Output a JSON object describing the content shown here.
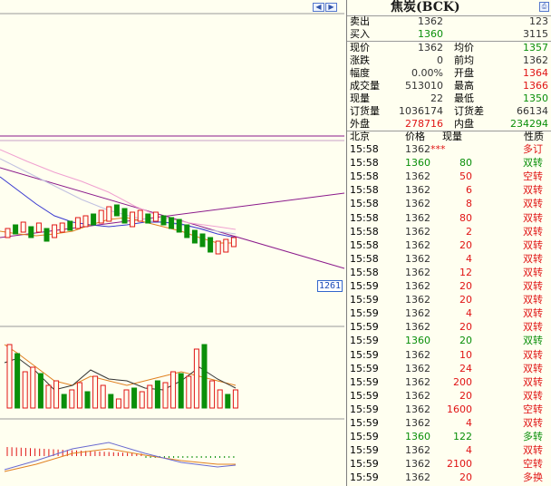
{
  "chart": {
    "price_marker": "1261",
    "scroll_left_icon": "scroll-left-icon",
    "scroll_right_icon": "scroll-right-icon"
  },
  "quote": {
    "title": "焦炭(BCK)",
    "print_icon": "print-icon",
    "ask": {
      "label": "卖出",
      "price": "1362",
      "volume": "123"
    },
    "bid": {
      "label": "买入",
      "price": "1360",
      "volume": "3115"
    },
    "stats": [
      {
        "l1": "现价",
        "v1": "1362",
        "c1": "black",
        "l2": "均价",
        "v2": "1357",
        "c2": "green"
      },
      {
        "l1": "涨跌",
        "v1": "0",
        "c1": "black",
        "l2": "前均",
        "v2": "1362",
        "c2": "black"
      },
      {
        "l1": "幅度",
        "v1": "0.00%",
        "c1": "black",
        "l2": "开盘",
        "v2": "1364",
        "c2": "red"
      },
      {
        "l1": "成交量",
        "v1": "513010",
        "c1": "black",
        "l2": "最高",
        "v2": "1366",
        "c2": "red"
      },
      {
        "l1": "现量",
        "v1": "22",
        "c1": "black",
        "l2": "最低",
        "v2": "1350",
        "c2": "green"
      },
      {
        "l1": "订货量",
        "v1": "1036174",
        "c1": "black",
        "l2": "订货差",
        "v2": "66134",
        "c2": "black"
      },
      {
        "l1": "外盘",
        "v1": "278716",
        "c1": "red",
        "l2": "内盘",
        "v2": "234294",
        "c2": "green"
      }
    ],
    "trade_header": {
      "time": "北京",
      "price": "价格",
      "volume": "现量",
      "nature": "性质"
    },
    "trades": [
      {
        "time": "15:58",
        "price": "1362",
        "pc": "black",
        "volume": "***",
        "vc": "red",
        "nature": "多订",
        "nc": "red"
      },
      {
        "time": "15:58",
        "price": "1360",
        "pc": "green",
        "volume": "80",
        "vc": "green",
        "nature": "双转",
        "nc": "green"
      },
      {
        "time": "15:58",
        "price": "1362",
        "pc": "black",
        "volume": "50",
        "vc": "red",
        "nature": "空转",
        "nc": "red"
      },
      {
        "time": "15:58",
        "price": "1362",
        "pc": "black",
        "volume": "6",
        "vc": "red",
        "nature": "双转",
        "nc": "red"
      },
      {
        "time": "15:58",
        "price": "1362",
        "pc": "black",
        "volume": "8",
        "vc": "red",
        "nature": "双转",
        "nc": "red"
      },
      {
        "time": "15:58",
        "price": "1362",
        "pc": "black",
        "volume": "80",
        "vc": "red",
        "nature": "双转",
        "nc": "red"
      },
      {
        "time": "15:58",
        "price": "1362",
        "pc": "black",
        "volume": "2",
        "vc": "red",
        "nature": "双转",
        "nc": "red"
      },
      {
        "time": "15:58",
        "price": "1362",
        "pc": "black",
        "volume": "20",
        "vc": "red",
        "nature": "双转",
        "nc": "red"
      },
      {
        "time": "15:58",
        "price": "1362",
        "pc": "black",
        "volume": "4",
        "vc": "red",
        "nature": "双转",
        "nc": "red"
      },
      {
        "time": "15:58",
        "price": "1362",
        "pc": "black",
        "volume": "12",
        "vc": "red",
        "nature": "双转",
        "nc": "red"
      },
      {
        "time": "15:59",
        "price": "1362",
        "pc": "black",
        "volume": "20",
        "vc": "red",
        "nature": "双转",
        "nc": "red"
      },
      {
        "time": "15:59",
        "price": "1362",
        "pc": "black",
        "volume": "20",
        "vc": "red",
        "nature": "双转",
        "nc": "red"
      },
      {
        "time": "15:59",
        "price": "1362",
        "pc": "black",
        "volume": "4",
        "vc": "red",
        "nature": "双转",
        "nc": "red"
      },
      {
        "time": "15:59",
        "price": "1362",
        "pc": "black",
        "volume": "20",
        "vc": "red",
        "nature": "双转",
        "nc": "red"
      },
      {
        "time": "15:59",
        "price": "1360",
        "pc": "green",
        "volume": "20",
        "vc": "green",
        "nature": "双转",
        "nc": "green"
      },
      {
        "time": "15:59",
        "price": "1362",
        "pc": "black",
        "volume": "10",
        "vc": "red",
        "nature": "双转",
        "nc": "red"
      },
      {
        "time": "15:59",
        "price": "1362",
        "pc": "black",
        "volume": "24",
        "vc": "red",
        "nature": "双转",
        "nc": "red"
      },
      {
        "time": "15:59",
        "price": "1362",
        "pc": "black",
        "volume": "200",
        "vc": "red",
        "nature": "双转",
        "nc": "red"
      },
      {
        "time": "15:59",
        "price": "1362",
        "pc": "black",
        "volume": "20",
        "vc": "red",
        "nature": "双转",
        "nc": "red"
      },
      {
        "time": "15:59",
        "price": "1362",
        "pc": "black",
        "volume": "1600",
        "vc": "red",
        "nature": "空转",
        "nc": "red"
      },
      {
        "time": "15:59",
        "price": "1362",
        "pc": "black",
        "volume": "4",
        "vc": "red",
        "nature": "双转",
        "nc": "red"
      },
      {
        "time": "15:59",
        "price": "1360",
        "pc": "green",
        "volume": "122",
        "vc": "green",
        "nature": "多转",
        "nc": "green"
      },
      {
        "time": "15:59",
        "price": "1362",
        "pc": "black",
        "volume": "4",
        "vc": "red",
        "nature": "双转",
        "nc": "red"
      },
      {
        "time": "15:59",
        "price": "1362",
        "pc": "black",
        "volume": "2100",
        "vc": "red",
        "nature": "空转",
        "nc": "red"
      },
      {
        "time": "15:59",
        "price": "1362",
        "pc": "black",
        "volume": "20",
        "vc": "red",
        "nature": "多换",
        "nc": "red"
      }
    ]
  },
  "colors": {
    "up": "#e01414",
    "down": "#0a8f0a",
    "accent": "#1a49b8",
    "bg": "#fffff0"
  }
}
